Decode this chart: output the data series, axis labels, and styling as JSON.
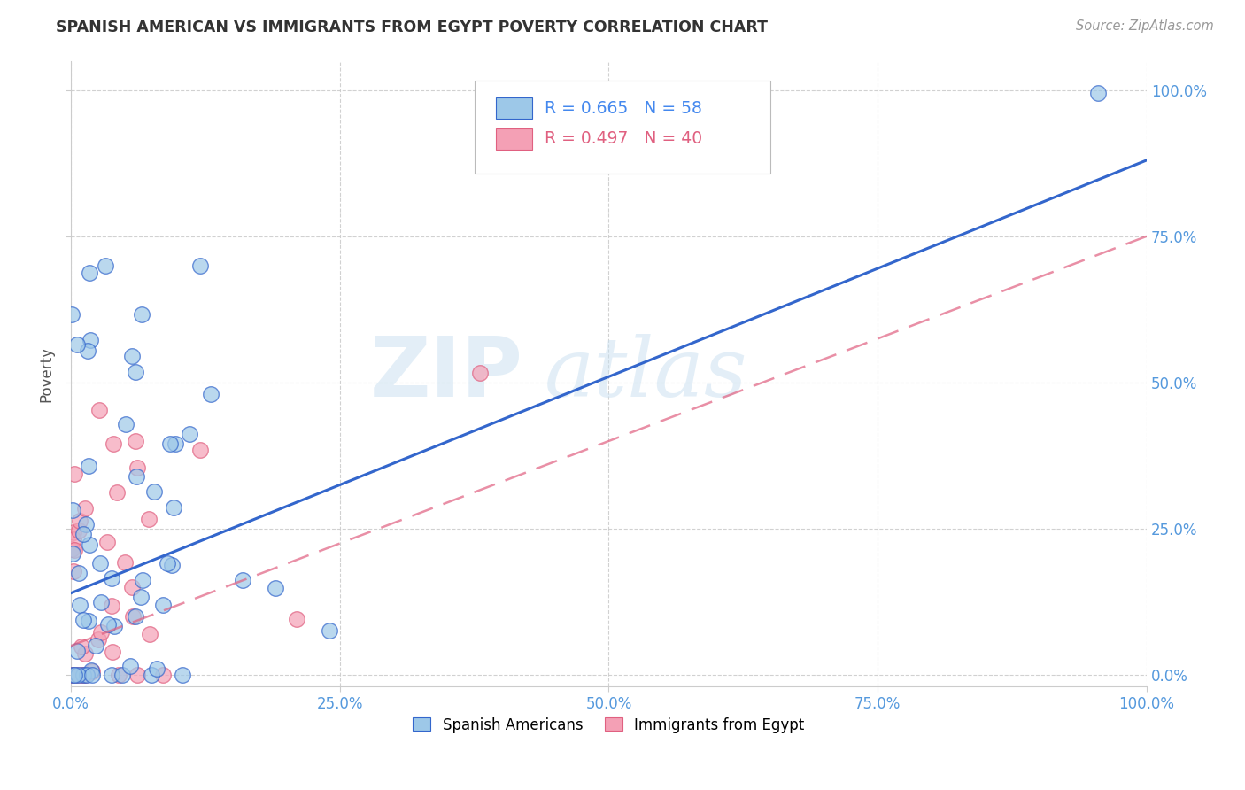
{
  "title": "SPANISH AMERICAN VS IMMIGRANTS FROM EGYPT POVERTY CORRELATION CHART",
  "source": "Source: ZipAtlas.com",
  "ylabel": "Poverty",
  "xlabel": "",
  "xlim": [
    0,
    1
  ],
  "ylim": [
    -0.02,
    1.05
  ],
  "xticks": [
    0,
    0.25,
    0.5,
    0.75,
    1.0
  ],
  "yticks": [
    0,
    0.25,
    0.5,
    0.75,
    1.0
  ],
  "xticklabels": [
    "0.0%",
    "25.0%",
    "50.0%",
    "75.0%",
    "100.0%"
  ],
  "yticklabels_right": [
    "0.0%",
    "25.0%",
    "50.0%",
    "75.0%",
    "100.0%"
  ],
  "legend_r1": "R = 0.665",
  "legend_n1": "N = 58",
  "legend_r2": "R = 0.497",
  "legend_n2": "N = 40",
  "color_blue": "#9dc8e8",
  "color_pink": "#f4a0b5",
  "color_line_blue": "#3366cc",
  "color_line_pink": "#e06080",
  "watermark_zip": "ZIP",
  "watermark_atlas": "atlas",
  "background_color": "#ffffff",
  "blue_line_x": [
    0,
    1.0
  ],
  "blue_line_y": [
    0.14,
    0.88
  ],
  "pink_line_x": [
    0,
    1.0
  ],
  "pink_line_y": [
    0.05,
    0.75
  ]
}
